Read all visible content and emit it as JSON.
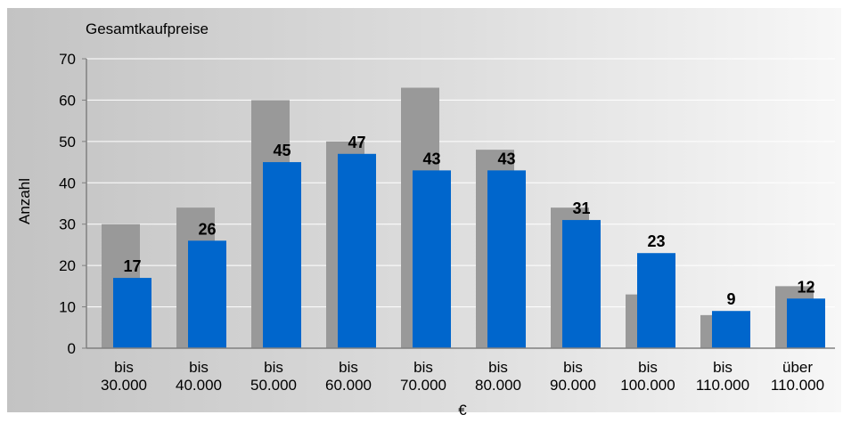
{
  "chart_data": {
    "type": "bar",
    "title": "Gesamtkaufpreise",
    "xlabel": "€",
    "ylabel": "Anzahl",
    "ylim": [
      0,
      70
    ],
    "yticks": [
      0,
      10,
      20,
      30,
      40,
      50,
      60,
      70
    ],
    "grid": true,
    "legend": "none",
    "categories": [
      [
        "bis",
        "30.000"
      ],
      [
        "bis",
        "40.000"
      ],
      [
        "bis",
        "50.000"
      ],
      [
        "bis",
        "60.000"
      ],
      [
        "bis",
        "70.000"
      ],
      [
        "bis",
        "80.000"
      ],
      [
        "bis",
        "90.000"
      ],
      [
        "bis",
        "100.000"
      ],
      [
        "bis",
        "110.000"
      ],
      [
        "über",
        "110.000"
      ]
    ],
    "series": [
      {
        "values": [
          30,
          34,
          60,
          50,
          63,
          48,
          34,
          13,
          8,
          15
        ],
        "color": "#999999",
        "data_labels": false
      },
      {
        "values": [
          17,
          26,
          45,
          47,
          43,
          43,
          31,
          23,
          9,
          12
        ],
        "color": "#0066CC",
        "data_labels": true
      }
    ]
  }
}
